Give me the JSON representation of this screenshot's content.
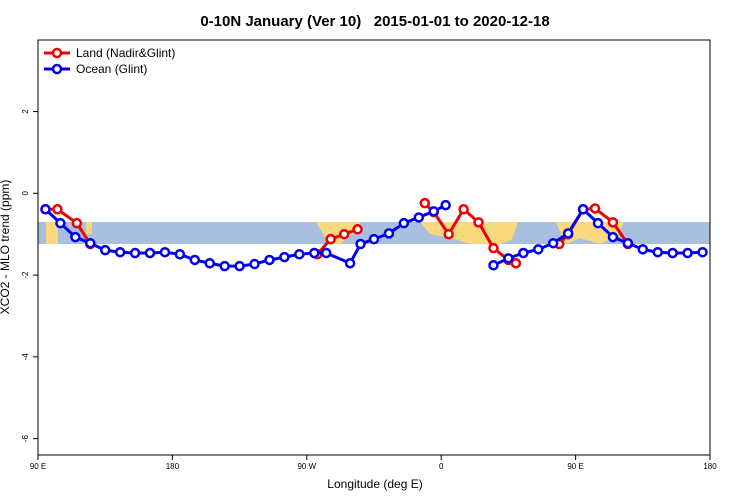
{
  "chart_data": {
    "type": "line",
    "title": "0-10N January (Ver 10)   2015-01-01 to 2020-12-18",
    "x_label": "Longitude (deg E)",
    "y_label": "XCO2 - MLO trend (ppm)",
    "xlim": [
      90,
      540
    ],
    "xticks": [
      {
        "value": 90,
        "label": "90 E"
      },
      {
        "value": 180,
        "label": "180"
      },
      {
        "value": 270,
        "label": "90 W"
      },
      {
        "value": 360,
        "label": "0"
      },
      {
        "value": 450,
        "label": "90 E"
      },
      {
        "value": 540,
        "label": "180"
      }
    ],
    "ylim": [
      -6.4,
      3.75
    ],
    "yticks": [
      -6,
      -4,
      -2,
      0,
      2
    ],
    "legend_position": "top-left",
    "series": [
      {
        "name": "Land (Nadir&Glint)",
        "color": "#ee0000",
        "x": [
          95,
          103,
          116,
          125,
          200,
          277,
          286,
          295,
          304,
          330,
          349,
          355,
          365,
          375,
          385,
          395,
          405,
          410,
          425,
          439,
          445,
          455,
          463,
          475,
          485
        ],
        "values": [
          -0.39,
          -0.39,
          -0.73,
          -1.24,
          null,
          -1.49,
          -1.12,
          -1.0,
          -0.88,
          null,
          -0.24,
          -0.46,
          -1.0,
          -0.39,
          -0.71,
          -1.34,
          -1.63,
          -1.71,
          null,
          -1.24,
          -1.0,
          -0.39,
          -0.37,
          -0.71,
          -1.24
        ]
      },
      {
        "name": "Ocean (Glint)",
        "color": "#0000ee",
        "x": [
          95,
          105,
          115,
          125,
          135,
          145,
          155,
          165,
          175,
          185,
          195,
          205,
          215,
          225,
          235,
          245,
          255,
          265,
          275,
          283,
          299,
          306,
          315,
          325,
          335,
          345,
          355,
          363,
          380,
          395,
          405,
          415,
          425,
          435,
          445,
          455,
          465,
          475,
          485,
          495,
          505,
          515,
          525,
          535
        ],
        "values": [
          -0.39,
          -0.73,
          -1.07,
          -1.22,
          -1.39,
          -1.44,
          -1.46,
          -1.46,
          -1.44,
          -1.49,
          -1.63,
          -1.71,
          -1.78,
          -1.78,
          -1.73,
          -1.63,
          -1.56,
          -1.49,
          -1.46,
          -1.46,
          -1.71,
          -1.24,
          -1.12,
          -0.98,
          -0.73,
          -0.59,
          -0.44,
          -0.29,
          null,
          -1.76,
          -1.59,
          -1.46,
          -1.37,
          -1.22,
          -0.98,
          -0.39,
          -0.73,
          -1.07,
          -1.22,
          -1.37,
          -1.44,
          -1.46,
          -1.46,
          -1.44
        ]
      }
    ]
  }
}
